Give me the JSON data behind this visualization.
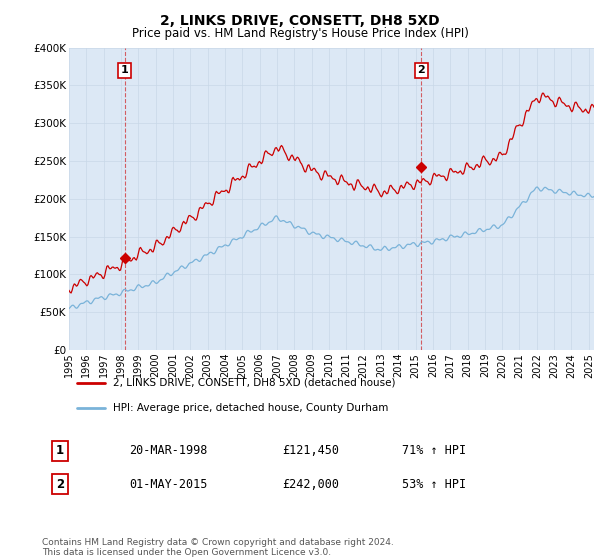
{
  "title": "2, LINKS DRIVE, CONSETT, DH8 5XD",
  "subtitle": "Price paid vs. HM Land Registry's House Price Index (HPI)",
  "ylabel_ticks": [
    "£0",
    "£50K",
    "£100K",
    "£150K",
    "£200K",
    "£250K",
    "£300K",
    "£350K",
    "£400K"
  ],
  "ytick_values": [
    0,
    50000,
    100000,
    150000,
    200000,
    250000,
    300000,
    350000,
    400000
  ],
  "ylim": [
    0,
    400000
  ],
  "xlim_start": 1995.0,
  "xlim_end": 2025.3,
  "sale1_year": 1998.22,
  "sale1_price": 121450,
  "sale1_label": "1",
  "sale2_year": 2015.33,
  "sale2_price": 242000,
  "sale2_label": "2",
  "hpi_line_color": "#7ab3d9",
  "property_line_color": "#cc0000",
  "vline_color": "#cc0000",
  "grid_color": "#c8d8e8",
  "background_color": "#ffffff",
  "plot_bg_color": "#dce8f5",
  "legend_label1": "2, LINKS DRIVE, CONSETT, DH8 5XD (detached house)",
  "legend_label2": "HPI: Average price, detached house, County Durham",
  "note1_label": "1",
  "note1_date": "20-MAR-1998",
  "note1_price": "£121,450",
  "note1_hpi": "71% ↑ HPI",
  "note2_label": "2",
  "note2_date": "01-MAY-2015",
  "note2_price": "£242,000",
  "note2_hpi": "53% ↑ HPI",
  "footer": "Contains HM Land Registry data © Crown copyright and database right 2024.\nThis data is licensed under the Open Government Licence v3.0.",
  "xtick_years": [
    1995,
    1996,
    1997,
    1998,
    1999,
    2000,
    2001,
    2002,
    2003,
    2004,
    2005,
    2006,
    2007,
    2008,
    2009,
    2010,
    2011,
    2012,
    2013,
    2014,
    2015,
    2016,
    2017,
    2018,
    2019,
    2020,
    2021,
    2022,
    2023,
    2024,
    2025
  ]
}
